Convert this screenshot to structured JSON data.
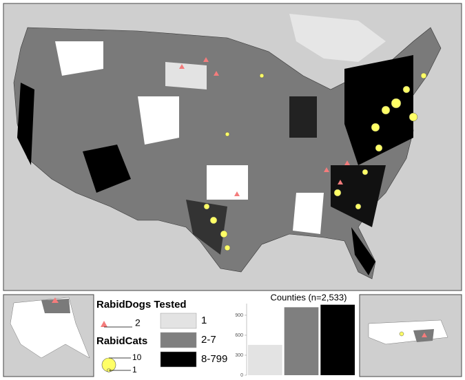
{
  "legend": {
    "dogs_title": "RabidDogs Tested",
    "dogs_size": "2",
    "cats_title": "RabidCats",
    "cats_sizes": [
      "10",
      "1"
    ],
    "classes": [
      "1",
      "2-7",
      "8-799"
    ]
  },
  "chart_data": {
    "type": "bar",
    "title": "Counties (n=2,533)",
    "categories": [
      null,
      null,
      null
    ],
    "values": [
      455,
      1020,
      1058
    ],
    "colors": [
      "#e3e3e3",
      "#7f7f7f",
      "#000000"
    ],
    "ylim": [
      0,
      1075
    ],
    "yticks": [
      0,
      300,
      600,
      900
    ]
  }
}
